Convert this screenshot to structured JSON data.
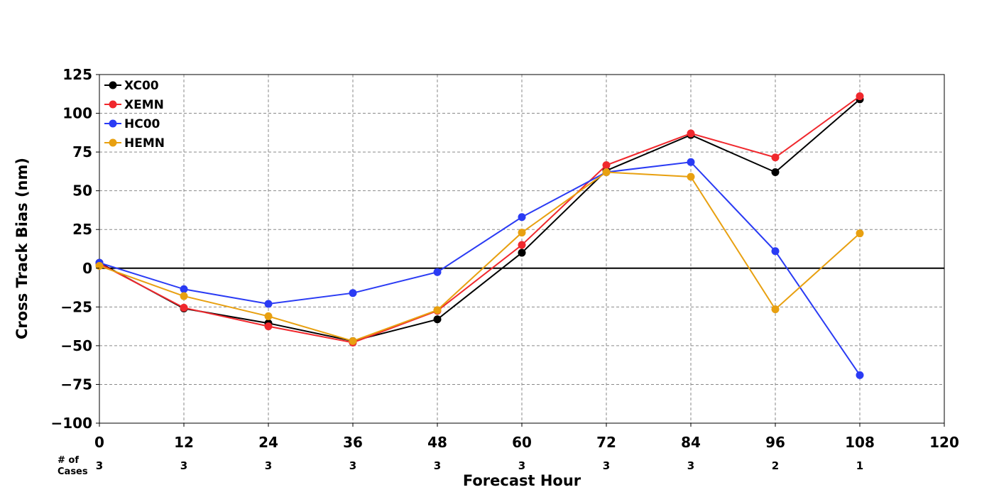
{
  "chart_data": {
    "type": "line",
    "xlabel": "Forecast Hour",
    "ylabel": "Cross Track Bias (nm)",
    "xlim": [
      0,
      120
    ],
    "ylim": [
      -100,
      125
    ],
    "x_ticks": [
      0,
      12,
      24,
      36,
      48,
      60,
      72,
      84,
      96,
      108,
      120
    ],
    "y_ticks": [
      -100,
      -75,
      -50,
      -25,
      0,
      25,
      50,
      75,
      100,
      125
    ],
    "x_tick_labels": [
      "0",
      "12",
      "24",
      "36",
      "48",
      "60",
      "72",
      "84",
      "96",
      "108",
      "120"
    ],
    "y_tick_labels": [
      "−100",
      "−75",
      "−50",
      "−25",
      "0",
      "25",
      "50",
      "75",
      "100",
      "125"
    ],
    "grid": true,
    "zero_line": true,
    "legend_position": "top-left",
    "cases_label_line1": "# of",
    "cases_label_line2": "Cases",
    "cases_x": [
      0,
      12,
      24,
      36,
      48,
      60,
      72,
      84,
      96,
      108
    ],
    "cases": [
      "3",
      "3",
      "3",
      "3",
      "3",
      "3",
      "3",
      "3",
      "2",
      "1"
    ],
    "series": [
      {
        "name": "XC00",
        "color": "#000000",
        "x": [
          0,
          12,
          24,
          36,
          48,
          60,
          72,
          84,
          96,
          108
        ],
        "values": [
          3.5,
          -26,
          -35.5,
          -47,
          -33,
          10,
          63,
          86,
          62,
          109
        ]
      },
      {
        "name": "XEMN",
        "color": "#f0282d",
        "x": [
          0,
          12,
          24,
          36,
          48,
          60,
          72,
          84,
          96,
          108
        ],
        "values": [
          3,
          -25.5,
          -37.5,
          -48,
          -27.5,
          15,
          66.5,
          87,
          71.5,
          111
        ]
      },
      {
        "name": "HC00",
        "color": "#2a3bf4",
        "x": [
          0,
          12,
          24,
          36,
          48,
          60,
          72,
          84,
          96,
          108
        ],
        "values": [
          3.5,
          -13.5,
          -23,
          -16,
          -2.5,
          33,
          62,
          68.5,
          11,
          -69
        ]
      },
      {
        "name": "HEMN",
        "color": "#e8a010",
        "x": [
          0,
          12,
          24,
          36,
          48,
          60,
          72,
          84,
          96,
          108
        ],
        "values": [
          1.5,
          -18,
          -31,
          -47,
          -27,
          23,
          62,
          59,
          -26.5,
          22.5
        ]
      }
    ]
  }
}
